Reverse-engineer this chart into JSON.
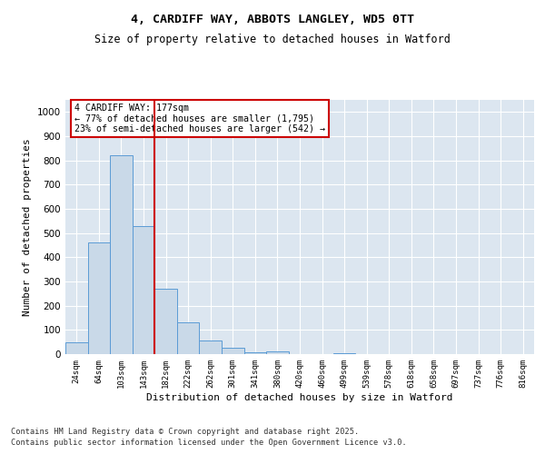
{
  "title": "4, CARDIFF WAY, ABBOTS LANGLEY, WD5 0TT",
  "subtitle": "Size of property relative to detached houses in Watford",
  "xlabel": "Distribution of detached houses by size in Watford",
  "ylabel": "Number of detached properties",
  "categories": [
    "24sqm",
    "64sqm",
    "103sqm",
    "143sqm",
    "182sqm",
    "222sqm",
    "262sqm",
    "301sqm",
    "341sqm",
    "380sqm",
    "420sqm",
    "460sqm",
    "499sqm",
    "539sqm",
    "578sqm",
    "618sqm",
    "658sqm",
    "697sqm",
    "737sqm",
    "776sqm",
    "816sqm"
  ],
  "values": [
    50,
    460,
    820,
    530,
    270,
    130,
    55,
    25,
    8,
    12,
    0,
    0,
    5,
    0,
    0,
    0,
    0,
    0,
    0,
    0,
    0
  ],
  "bar_color": "#c9d9e8",
  "bar_edge_color": "#5b9bd5",
  "vline_color": "#cc0000",
  "vline_position": 3.5,
  "annotation_title": "4 CARDIFF WAY: 177sqm",
  "annotation_line1": "← 77% of detached houses are smaller (1,795)",
  "annotation_line2": "23% of semi-detached houses are larger (542) →",
  "annotation_box_color": "#cc0000",
  "ylim": [
    0,
    1050
  ],
  "yticks": [
    0,
    100,
    200,
    300,
    400,
    500,
    600,
    700,
    800,
    900,
    1000
  ],
  "background_color": "#dce6f0",
  "footnote1": "Contains HM Land Registry data © Crown copyright and database right 2025.",
  "footnote2": "Contains public sector information licensed under the Open Government Licence v3.0."
}
